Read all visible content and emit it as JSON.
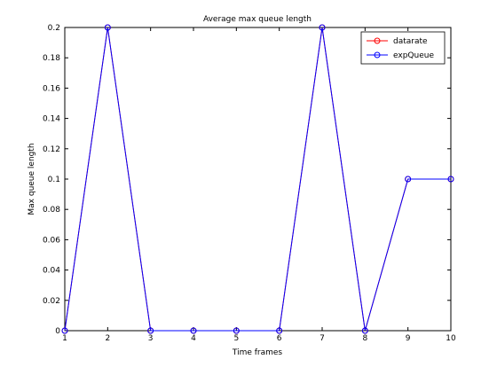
{
  "chart_data": {
    "type": "line",
    "title": "Average max queue length",
    "xlabel": "Time frames",
    "ylabel": "Max queue length",
    "x": [
      1,
      2,
      3,
      4,
      5,
      6,
      7,
      8,
      9,
      10
    ],
    "xlim": [
      1,
      10
    ],
    "ylim": [
      0,
      0.2
    ],
    "xticks": [
      "1",
      "2",
      "3",
      "4",
      "5",
      "6",
      "7",
      "8",
      "9",
      "10"
    ],
    "yticks": [
      "0",
      "0.02",
      "0.04",
      "0.06",
      "0.08",
      "0.1",
      "0.12",
      "0.14",
      "0.16",
      "0.18",
      "0.2"
    ],
    "ytick_values": [
      0,
      0.02,
      0.04,
      0.06,
      0.08,
      0.1,
      0.12,
      0.14,
      0.16,
      0.18,
      0.2
    ],
    "series": [
      {
        "name": "datarate",
        "color": "#ff0000",
        "marker": "circle",
        "values": [
          0,
          0.2,
          0,
          0,
          0,
          0,
          0.2,
          0,
          0.1,
          0.1
        ]
      },
      {
        "name": "expQueue",
        "color": "#0000ff",
        "marker": "circle",
        "values": [
          0,
          0.2,
          0,
          0,
          0,
          0,
          0.2,
          0,
          0.1,
          0.1
        ]
      }
    ],
    "grid": false,
    "legend_position": "top-right"
  }
}
